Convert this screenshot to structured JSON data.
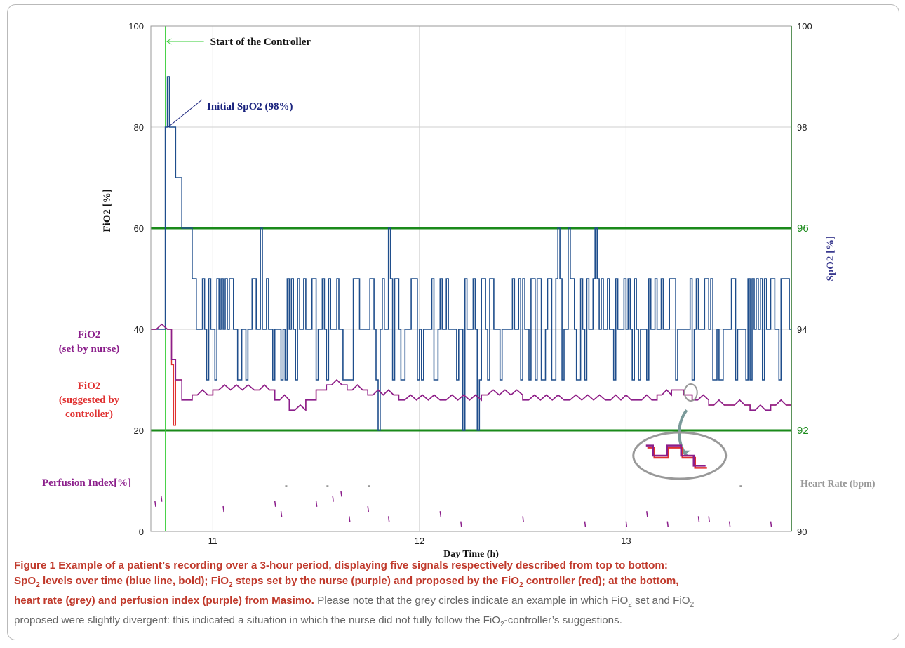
{
  "chart_data": {
    "type": "line",
    "x": {
      "label": "Day Time (h)",
      "range": [
        10.7,
        13.8
      ],
      "ticks": [
        "11",
        "12",
        "13"
      ],
      "tick_values": [
        11,
        12,
        13
      ]
    },
    "y_left": {
      "label": "FiO2 [%]",
      "range": [
        0,
        100
      ],
      "ticks": [
        "0",
        "20",
        "40",
        "60",
        "80",
        "100"
      ],
      "tick_values": [
        0,
        20,
        40,
        60,
        80,
        100
      ]
    },
    "y_right": {
      "label": "SpO2 [%]",
      "range": [
        90,
        100
      ],
      "ticks": [
        "90",
        "92",
        "94",
        "96",
        "98",
        "100"
      ],
      "tick_values": [
        90,
        92,
        94,
        96,
        98,
        100
      ],
      "highlighted": [
        "92",
        "96"
      ]
    },
    "grid": true,
    "target_band": {
      "lower_spo2": 92,
      "upper_spo2": 96,
      "color": "#1a8a1a"
    },
    "start_marker": {
      "x": 10.77,
      "label": "Start of the Controller",
      "color": "#33cc33"
    },
    "annotations": [
      {
        "text": "Initial SpO2 (98%)",
        "x": 10.77,
        "spo2": 98,
        "color": "#1a237e"
      }
    ],
    "series": [
      {
        "name": "SpO2",
        "color": "#1f4e8c",
        "x": [
          10.7,
          10.77,
          10.78,
          10.79,
          10.8,
          10.82,
          10.85,
          10.9,
          11.0,
          11.1,
          11.2,
          11.3,
          11.4,
          11.5,
          11.6,
          11.7,
          11.8,
          11.9,
          12.0,
          12.1,
          12.2,
          12.3,
          12.4,
          12.5,
          12.6,
          12.7,
          12.8,
          12.9,
          13.0,
          13.1,
          13.2,
          13.3,
          13.4,
          13.5,
          13.6,
          13.7,
          13.8
        ],
        "values": [
          94,
          98,
          99,
          98,
          98,
          97,
          96,
          95,
          94,
          94.5,
          94.5,
          94,
          94.5,
          93.5,
          94.5,
          94.5,
          94,
          94.5,
          93.5,
          94,
          94.5,
          93.5,
          94,
          94.5,
          94,
          94.5,
          93.5,
          94,
          94.5,
          94.5,
          94,
          95,
          94.5,
          94,
          94.5,
          94,
          94.5
        ]
      },
      {
        "name": "FiO2 (set by nurse)",
        "color": "#8b1e8b",
        "x": [
          10.7,
          10.78,
          10.8,
          10.82,
          10.85,
          10.9,
          11.0,
          11.2,
          11.3,
          11.37,
          11.45,
          11.5,
          11.55,
          11.65,
          11.75,
          11.9,
          12.1,
          12.3,
          12.5,
          12.7,
          12.9,
          13.05,
          13.15,
          13.22,
          13.28,
          13.32,
          13.4,
          13.5,
          13.6,
          13.7,
          13.8
        ],
        "values": [
          40,
          40,
          34,
          30,
          26,
          27,
          28,
          28,
          26,
          24,
          26,
          28,
          29,
          28,
          27,
          26,
          26,
          27,
          26,
          26,
          26,
          26,
          27,
          28,
          27,
          26,
          25,
          25,
          24,
          25,
          25
        ]
      },
      {
        "name": "FiO2 (suggested by controller)",
        "color": "#e03030",
        "x": [
          10.7,
          10.78,
          10.8,
          10.81,
          10.82,
          10.85,
          10.9,
          11.0,
          11.2,
          11.3,
          11.37,
          11.45,
          11.5,
          11.55,
          11.65,
          11.75,
          11.9,
          12.1,
          12.3,
          12.5,
          12.7,
          12.9,
          13.05,
          13.15,
          13.22,
          13.28,
          13.32,
          13.4,
          13.5,
          13.6,
          13.7,
          13.8
        ],
        "values": [
          40,
          40,
          33,
          21,
          30,
          26,
          27,
          28,
          28,
          26,
          24,
          26,
          28,
          29,
          28,
          27,
          26,
          26,
          27,
          26,
          26,
          26,
          26,
          27,
          28,
          27,
          26,
          25,
          25,
          24,
          25,
          25
        ]
      },
      {
        "name": "Perfusion Index[%]",
        "color": "#8b1e8b",
        "x": [
          10.72,
          10.75,
          11.05,
          11.3,
          11.33,
          11.5,
          11.58,
          11.62,
          11.66,
          11.75,
          11.85,
          12.1,
          12.2,
          12.5,
          12.8,
          13.0,
          13.1,
          13.2,
          13.35,
          13.4,
          13.5,
          13.7
        ],
        "values": [
          6,
          7,
          5,
          6,
          4,
          6,
          7,
          8,
          3,
          5,
          3,
          4,
          2,
          3,
          2,
          2,
          4,
          2,
          3,
          3,
          2,
          2
        ]
      },
      {
        "name": "Heart Rate (bpm)",
        "color": "#999999",
        "x": [
          11.35,
          11.55,
          11.75,
          13.55
        ],
        "values": [
          9,
          9,
          9,
          9
        ]
      }
    ],
    "series_labels": {
      "fio2_set": "FiO2\n(set by nurse)",
      "fio2_suggested": "FiO2\n(suggested by\ncontroller)",
      "perfusion": "Perfusion Index[%]",
      "heart_rate": "Heart Rate (bpm)"
    },
    "inset": {
      "description_color": "#999999",
      "circle_color": "#999999"
    }
  },
  "caption": {
    "bold_prefix": "Figure 1 Example of a patient’s recording over a 3-hour period, displaying five signals respectively described from top to bottom:",
    "bold_line2a": "SpO",
    "bold_line2a_sub": "2",
    "bold_line2b": " levels over time (blue line, bold); FiO",
    "bold_line2b_sub": "2",
    "bold_line2c": " steps set by the nurse (purple) and proposed by the FiO",
    "bold_line2c_sub": "2",
    "bold_line2d": " controller (red); at the bottom,",
    "bold_line3": "heart rate (grey) and perfusion index (purple) from Masimo.",
    "normal_a": " Please note that the grey circles indicate an example in which FiO",
    "normal_a_sub": "2",
    "normal_b": " set and FiO",
    "normal_b_sub": "2",
    "normal_c": " proposed were slightly divergent: this indicated a situation in which the nurse did not fully follow the FiO",
    "normal_c_sub": "2",
    "normal_d": "-controller’s suggestions."
  }
}
